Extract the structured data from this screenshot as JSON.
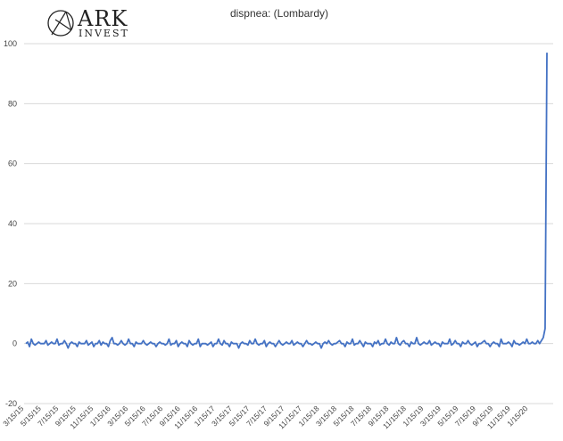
{
  "logo": {
    "name": "ARK",
    "sub": "INVEST"
  },
  "chart_data": {
    "type": "line",
    "title": "dispnea: (Lombardy)",
    "xlabel": "",
    "ylabel": "",
    "ylim": [
      -20,
      100
    ],
    "yticks": [
      -20,
      0,
      20,
      40,
      60,
      80,
      100
    ],
    "grid": true,
    "x_start": "3/15/15",
    "x_end": "3/1/20",
    "xticks": [
      "3/15/15",
      "5/15/15",
      "7/15/15",
      "9/15/15",
      "11/15/15",
      "1/15/16",
      "3/15/16",
      "5/15/16",
      "7/15/16",
      "9/15/16",
      "11/15/16",
      "1/15/17",
      "3/15/17",
      "5/15/17",
      "7/15/17",
      "9/15/17",
      "11/15/17",
      "1/15/18",
      "3/15/18",
      "5/15/18",
      "7/15/18",
      "9/15/18",
      "11/15/18",
      "1/15/19",
      "3/15/19",
      "5/15/19",
      "7/15/19",
      "9/15/19",
      "11/15/19",
      "1/15/20"
    ],
    "series": [
      {
        "color": "#4472c4",
        "values": [
          0,
          0.5,
          -1,
          1.5,
          0,
          -0.5,
          0,
          0.5,
          0,
          0,
          0,
          1,
          -0.5,
          0,
          0.5,
          0,
          0,
          1.5,
          -0.5,
          0,
          0,
          1,
          0,
          -1.5,
          0,
          0.5,
          0,
          0,
          -1,
          0.5,
          0,
          0,
          0,
          1,
          -0.5,
          0,
          0.5,
          -1,
          0,
          0,
          1,
          -0.5,
          0.5,
          0,
          0,
          -1,
          1,
          2,
          0,
          0,
          -0.5,
          0,
          1,
          0,
          -0.5,
          0,
          1.5,
          0,
          0,
          -1,
          0.5,
          0,
          0,
          0,
          1,
          0,
          -0.5,
          0,
          0.5,
          0,
          0,
          -1,
          0,
          0.5,
          0,
          0,
          -0.5,
          0,
          1.5,
          -0.5,
          0,
          0,
          1,
          -1,
          0,
          0.5,
          0,
          0,
          -1,
          1,
          0,
          -0.5,
          0,
          0,
          1.5,
          -1,
          0,
          0,
          0,
          -0.5,
          0,
          0.5,
          -1,
          0,
          0,
          1.5,
          0,
          -0.5,
          1,
          0,
          0,
          -1,
          0.5,
          0,
          0,
          0,
          -1.5,
          0,
          0.5,
          0,
          0,
          -0.5,
          1,
          0,
          0,
          1.5,
          0,
          -0.5,
          0,
          0,
          1,
          -1,
          0,
          0.5,
          0,
          0,
          -1,
          0,
          1,
          0,
          -0.5,
          0,
          0.5,
          0,
          0,
          1,
          -0.5,
          0,
          0.5,
          0,
          0,
          -1,
          0,
          1,
          0,
          0,
          -0.5,
          0,
          0.5,
          0,
          0,
          -1.5,
          0,
          0.5,
          0,
          1,
          0,
          -0.5,
          0,
          0,
          0.5,
          1,
          0,
          0,
          -1,
          0.5,
          0,
          0,
          1.5,
          -0.5,
          0,
          0,
          1,
          0,
          -1,
          0.5,
          0,
          0,
          0,
          -1,
          0.5,
          0,
          1,
          -0.5,
          0,
          0,
          1.5,
          0,
          -0.5,
          0.5,
          0,
          0,
          2,
          0,
          -0.5,
          0.5,
          1,
          0,
          0,
          -1,
          0.5,
          0,
          0,
          2,
          0,
          -0.5,
          0,
          0.5,
          0,
          0,
          1,
          -0.5,
          0,
          0.5,
          0,
          0,
          -1,
          0.5,
          0,
          0,
          0,
          1.5,
          -0.5,
          0,
          1,
          0,
          0,
          -1,
          0.5,
          0,
          0,
          1,
          0,
          -0.5,
          0,
          0.5,
          -1,
          0,
          0,
          0.5,
          1,
          0,
          0,
          -1,
          0,
          0.5,
          0,
          0,
          -1,
          1.5,
          0,
          0,
          0,
          0.5,
          0,
          -1,
          1,
          0,
          0,
          -0.5,
          0,
          0.5,
          0,
          1.5,
          0,
          0,
          0.5,
          0,
          0,
          1,
          0,
          1,
          2,
          5,
          97
        ]
      }
    ]
  }
}
